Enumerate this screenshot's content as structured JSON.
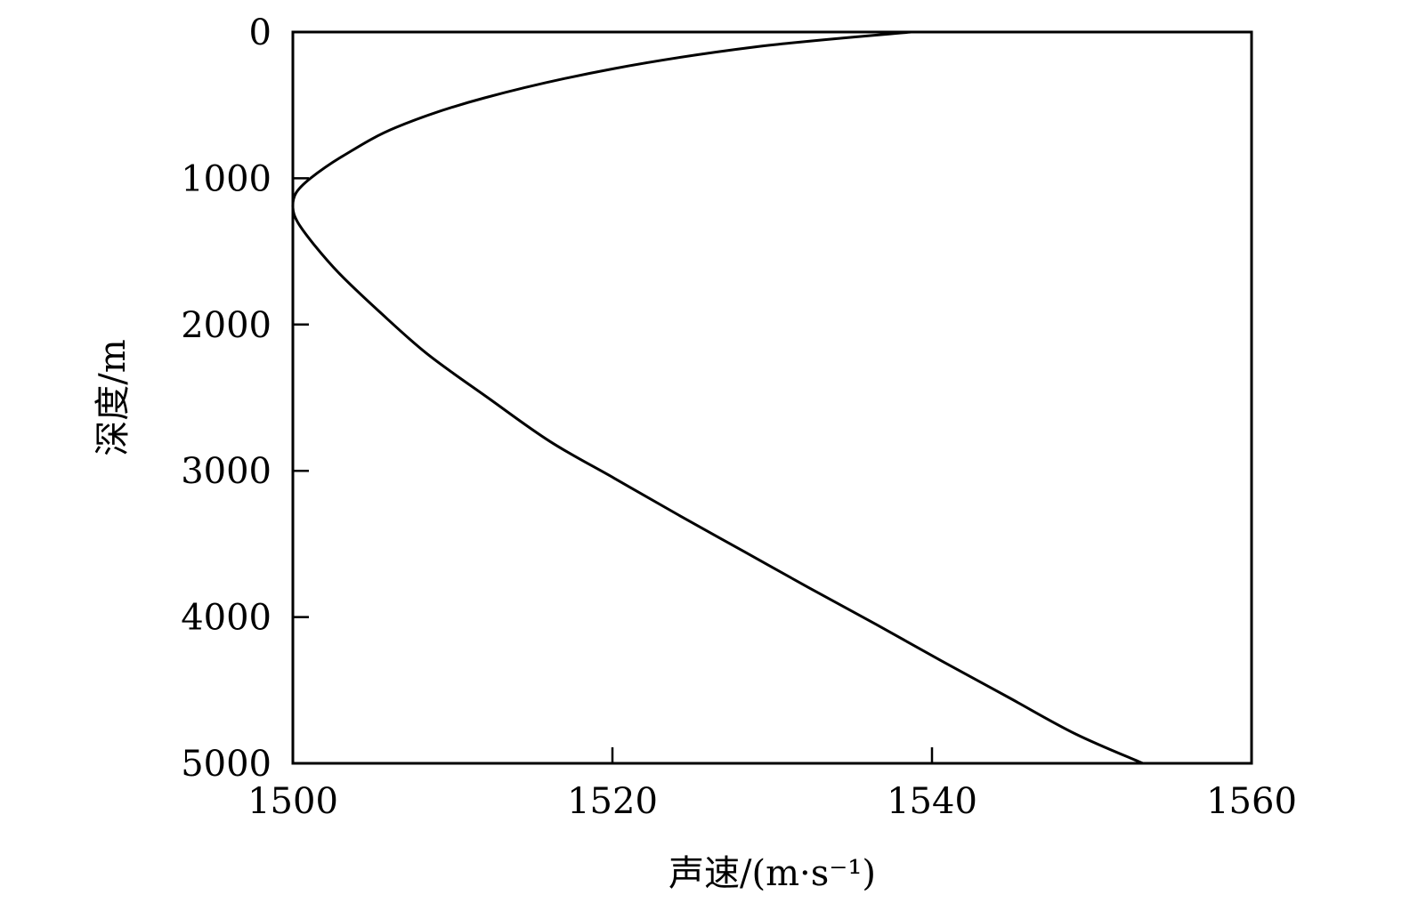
{
  "chart_data": {
    "type": "line",
    "xlabel": "声速/(m·s⁻¹)",
    "ylabel": "深度/m",
    "xlim": [
      1500,
      1560
    ],
    "ylim": [
      0,
      5000
    ],
    "y_inverted": true,
    "x_axis_position": "bottom",
    "grid": false,
    "legend": "none",
    "xticks": [
      1500,
      1520,
      1540,
      1560
    ],
    "yticks": [
      0,
      1000,
      2000,
      3000,
      4000,
      5000
    ],
    "line_color": "#000000",
    "series": [
      {
        "x": [
          1538.7,
          1529.1,
          1520.1,
          1512.0,
          1506.5,
          1503.1,
          1501.1,
          1500.2,
          1500.0,
          1500.3,
          1501.3,
          1502.9,
          1505.3,
          1508.4,
          1512.2,
          1516.1,
          1520.1,
          1524.1,
          1528.2,
          1532.3,
          1536.5,
          1540.6,
          1544.8,
          1549.0,
          1553.2
        ],
        "y": [
          0,
          100,
          250,
          450,
          650,
          850,
          1000,
          1100,
          1200,
          1300,
          1450,
          1650,
          1900,
          2200,
          2500,
          2800,
          3050,
          3300,
          3550,
          3800,
          4050,
          4300,
          4550,
          4800,
          5000
        ]
      }
    ]
  }
}
